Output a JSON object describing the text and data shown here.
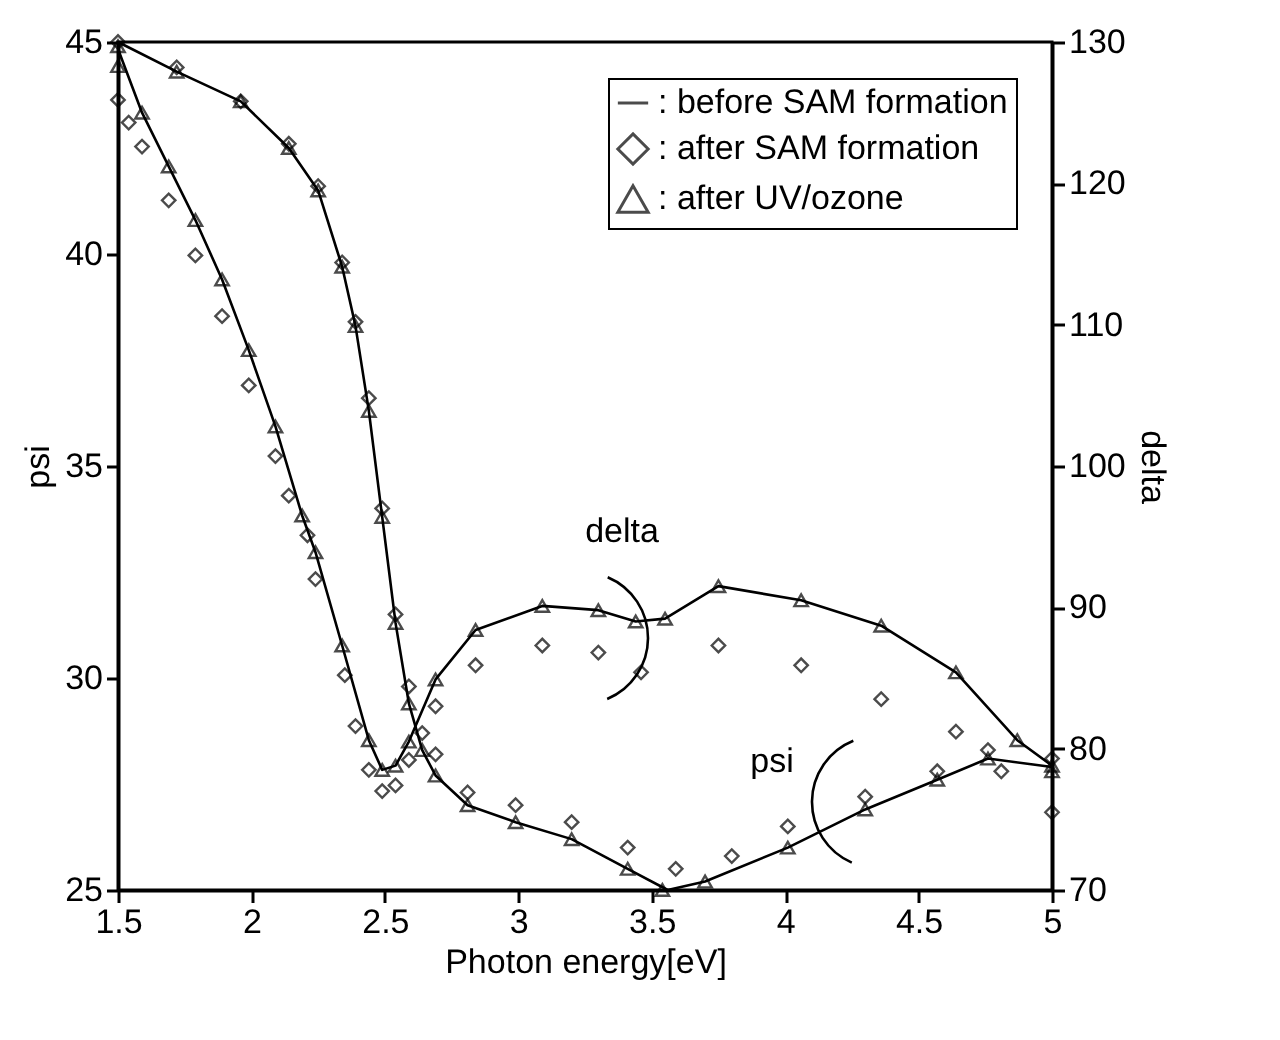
{
  "chart_data": {
    "type": "line",
    "xlabel": "Photon energy[eV]",
    "ylabel": "psi",
    "y2label": "delta",
    "xlim": [
      1.5,
      5
    ],
    "xticks": [
      1.5,
      2,
      2.5,
      3,
      3.5,
      4,
      4.5,
      5
    ],
    "ylim": [
      25,
      45
    ],
    "yticks": [
      25,
      30,
      35,
      40,
      45
    ],
    "y2lim": [
      70,
      130
    ],
    "y2ticks": [
      70,
      80,
      90,
      100,
      110,
      120,
      130
    ],
    "grid": false,
    "legend": "top right",
    "annotations": [
      "delta",
      "psi"
    ],
    "series": [
      {
        "name": ": before SAM formation",
        "type": "line",
        "marker": "none",
        "line_style": "solid",
        "axis": "y",
        "color": "#000000",
        "x": [
          1.5,
          1.72,
          1.96,
          2.14,
          2.25,
          2.34,
          2.39,
          2.44,
          2.49,
          2.54,
          2.59,
          2.64,
          2.69,
          2.81,
          2.99,
          3.2,
          3.41,
          3.56,
          3.7,
          4.01,
          4.3,
          4.57,
          4.76,
          5.0
        ],
        "values": [
          45.0,
          44.3,
          43.6,
          42.5,
          41.5,
          39.7,
          38.3,
          36.3,
          33.8,
          31.3,
          29.4,
          28.3,
          27.7,
          27.0,
          26.6,
          26.2,
          25.5,
          25.0,
          25.2,
          26.0,
          26.9,
          27.6,
          28.1,
          27.9
        ]
      },
      {
        "name": ": after SAM formation",
        "type": "scatter",
        "marker": "diamond",
        "axis": "y",
        "color": "#000000",
        "x": [
          1.5,
          1.72,
          1.96,
          2.14,
          2.25,
          2.34,
          2.39,
          2.44,
          2.49,
          2.54,
          2.59,
          2.64,
          2.69,
          2.81,
          2.99,
          3.2,
          3.41,
          3.59,
          3.8,
          4.01,
          4.3,
          4.57,
          4.76,
          5.0
        ],
        "values": [
          45.0,
          44.4,
          43.6,
          42.6,
          41.6,
          39.8,
          38.4,
          36.6,
          34.0,
          31.5,
          29.8,
          28.7,
          28.2,
          27.3,
          27.0,
          26.6,
          26.0,
          25.5,
          25.8,
          26.5,
          27.2,
          27.8,
          28.3,
          28.1
        ]
      },
      {
        "name": ": after UV/ozone",
        "type": "scatter",
        "marker": "triangle",
        "axis": "y",
        "color": "#000000",
        "x": [
          1.5,
          1.72,
          1.96,
          2.14,
          2.25,
          2.34,
          2.39,
          2.44,
          2.49,
          2.54,
          2.59,
          2.64,
          2.69,
          2.81,
          2.99,
          3.2,
          3.41,
          3.54,
          3.7,
          4.01,
          4.3,
          4.57,
          4.76,
          5.0
        ],
        "values": [
          44.9,
          44.3,
          43.6,
          42.5,
          41.5,
          39.7,
          38.3,
          36.3,
          33.8,
          31.3,
          29.4,
          28.3,
          27.7,
          27.0,
          26.6,
          26.2,
          25.5,
          25.0,
          25.2,
          26.0,
          26.9,
          27.6,
          28.1,
          27.8
        ]
      },
      {
        "type": "line",
        "marker": "none",
        "line_style": "solid",
        "axis": "y2",
        "color": "#000000",
        "x": [
          1.5,
          1.59,
          1.69,
          1.79,
          1.89,
          1.99,
          2.09,
          2.19,
          2.24,
          2.34,
          2.44,
          2.49,
          2.54,
          2.59,
          2.69,
          2.84,
          3.09,
          3.3,
          3.44,
          3.55,
          3.75,
          4.06,
          4.36,
          4.64,
          4.87,
          5.0
        ],
        "values": [
          129.5,
          125.0,
          121.2,
          117.4,
          113.2,
          108.2,
          102.8,
          96.5,
          93.9,
          87.3,
          80.6,
          78.5,
          78.8,
          80.5,
          84.9,
          88.4,
          90.1,
          89.8,
          89.0,
          89.2,
          91.5,
          90.5,
          88.7,
          85.4,
          80.6,
          78.8
        ]
      },
      {
        "type": "scatter",
        "marker": "diamond",
        "axis": "y2",
        "color": "#000000",
        "x": [
          1.5,
          1.54,
          1.59,
          1.69,
          1.79,
          1.89,
          1.99,
          2.09,
          2.14,
          2.21,
          2.24,
          2.35,
          2.39,
          2.44,
          2.49,
          2.54,
          2.59,
          2.69,
          2.84,
          3.09,
          3.3,
          3.46,
          3.75,
          4.06,
          4.36,
          4.64,
          4.81,
          5.0
        ],
        "values": [
          125.9,
          124.3,
          122.6,
          118.8,
          114.9,
          110.6,
          105.7,
          100.7,
          97.9,
          95.1,
          92.0,
          85.2,
          81.6,
          78.5,
          77.0,
          77.4,
          79.2,
          83.0,
          85.9,
          87.3,
          86.8,
          85.4,
          87.3,
          85.9,
          83.5,
          81.2,
          78.4,
          75.5
        ]
      },
      {
        "type": "scatter",
        "marker": "triangle",
        "axis": "y2",
        "color": "#000000",
        "x": [
          1.5,
          1.59,
          1.69,
          1.79,
          1.89,
          1.99,
          2.09,
          2.19,
          2.24,
          2.34,
          2.44,
          2.49,
          2.54,
          2.59,
          2.69,
          2.84,
          3.09,
          3.3,
          3.44,
          3.55,
          3.75,
          4.06,
          4.36,
          4.64,
          4.87,
          5.0
        ],
        "values": [
          128.3,
          125.0,
          121.2,
          117.4,
          113.2,
          108.2,
          102.8,
          96.5,
          93.9,
          87.3,
          80.6,
          78.5,
          78.8,
          80.5,
          84.9,
          88.4,
          90.1,
          89.8,
          89.0,
          89.2,
          91.5,
          90.5,
          88.7,
          85.4,
          80.6,
          78.8
        ]
      }
    ]
  }
}
